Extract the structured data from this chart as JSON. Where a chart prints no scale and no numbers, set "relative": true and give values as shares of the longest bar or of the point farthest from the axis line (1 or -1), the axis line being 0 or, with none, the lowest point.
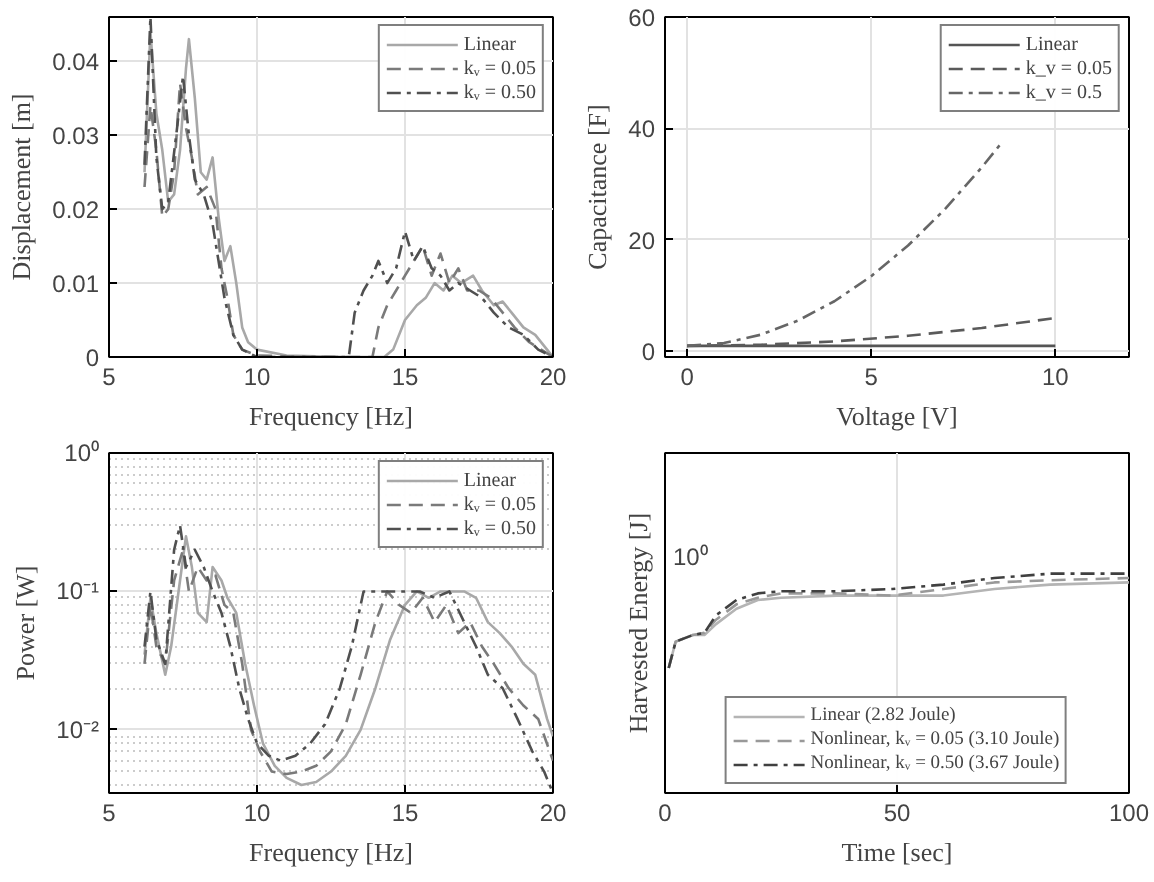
{
  "chart_data": [
    {
      "type": "line",
      "xlabel": "Frequency [Hz]",
      "ylabel": "Displacement [m]",
      "xlim": [
        5,
        20
      ],
      "ylim": [
        0,
        0.046
      ],
      "xticks": [
        5,
        10,
        15,
        20
      ],
      "yticks": [
        0,
        0.01,
        0.02,
        0.03,
        0.04
      ],
      "grid": true,
      "legend": "top right",
      "series": [
        {
          "name": "Linear",
          "color": "#a8a8a8",
          "line_style": "solid",
          "x": [
            6.2,
            6.4,
            6.6,
            6.8,
            7.0,
            7.2,
            7.4,
            7.6,
            7.7,
            7.9,
            8.1,
            8.3,
            8.5,
            8.7,
            8.9,
            9.1,
            9.3,
            9.5,
            9.7,
            10,
            11,
            13,
            14.3,
            14.6,
            15,
            15.4,
            15.7,
            16,
            16.3,
            16.6,
            16.9,
            17.3,
            17.6,
            18,
            18.3,
            18.6,
            19,
            19.4,
            19.8,
            20
          ],
          "values": [
            0.025,
            0.044,
            0.033,
            0.028,
            0.021,
            0.022,
            0.028,
            0.039,
            0.043,
            0.035,
            0.025,
            0.024,
            0.027,
            0.019,
            0.013,
            0.015,
            0.01,
            0.004,
            0.002,
            0.001,
            0.0002,
            0,
            0,
            0.001,
            0.005,
            0.007,
            0.008,
            0.01,
            0.009,
            0.011,
            0.01,
            0.011,
            0.009,
            0.007,
            0.0075,
            0.006,
            0.004,
            0.003,
            0.001,
            0
          ]
        },
        {
          "name": "kᵥ = 0.05",
          "color": "#7a7a7a",
          "line_style": "dashed",
          "x": [
            6.2,
            6.4,
            6.6,
            6.8,
            7.0,
            7.2,
            7.4,
            7.6,
            7.8,
            8.0,
            8.3,
            8.6,
            8.8,
            9.0,
            9.2,
            9.5,
            10,
            12,
            13.9,
            14.1,
            14.4,
            14.7,
            15.0,
            15.3,
            15.6,
            15.9,
            16.2,
            16.5,
            16.8,
            17.1,
            17.5,
            17.9,
            18.3,
            18.7,
            19.2,
            19.6,
            20
          ],
          "values": [
            0.023,
            0.034,
            0.028,
            0.019,
            0.02,
            0.025,
            0.037,
            0.031,
            0.027,
            0.022,
            0.023,
            0.02,
            0.012,
            0.008,
            0.003,
            0.001,
            0.0002,
            0,
            0,
            0.004,
            0.007,
            0.009,
            0.011,
            0.013,
            0.015,
            0.011,
            0.014,
            0.01,
            0.012,
            0.009,
            0.009,
            0.008,
            0.006,
            0.004,
            0.002,
            0.001,
            0
          ]
        },
        {
          "name": "kᵥ = 0.50",
          "color": "#505050",
          "line_style": "dashdot",
          "x": [
            6.2,
            6.4,
            6.6,
            6.8,
            7.0,
            7.3,
            7.5,
            7.7,
            7.9,
            8.2,
            8.5,
            8.7,
            8.9,
            9.2,
            9.5,
            10,
            12,
            13.1,
            13.3,
            13.6,
            13.9,
            14.1,
            14.4,
            14.7,
            15.0,
            15.3,
            15.6,
            15.9,
            16.2,
            16.5,
            16.8,
            17.2,
            17.6,
            18.0,
            18.5,
            19,
            19.5,
            20
          ],
          "values": [
            0.026,
            0.046,
            0.027,
            0.02,
            0.021,
            0.031,
            0.038,
            0.03,
            0.024,
            0.022,
            0.018,
            0.013,
            0.008,
            0.003,
            0.001,
            0,
            0,
            0,
            0.006,
            0.009,
            0.011,
            0.013,
            0.01,
            0.012,
            0.017,
            0.013,
            0.015,
            0.012,
            0.011,
            0.009,
            0.01,
            0.009,
            0.008,
            0.006,
            0.004,
            0.003,
            0.001,
            0
          ]
        }
      ]
    },
    {
      "type": "line",
      "xlabel": "Voltage [V]",
      "ylabel": "Capacitance [F]",
      "xlim": [
        -0.6,
        12
      ],
      "ylim": [
        -1,
        60
      ],
      "xticks": [
        0,
        5,
        10
      ],
      "yticks": [
        0,
        20,
        40,
        60
      ],
      "grid": true,
      "legend": "top right",
      "series": [
        {
          "name": "Linear",
          "color": "#555555",
          "line_style": "solid",
          "x": [
            0,
            10
          ],
          "values": [
            1,
            1
          ]
        },
        {
          "name": "k_v = 0.05",
          "color": "#5a5a5a",
          "line_style": "dashed",
          "x": [
            0,
            2,
            4,
            6,
            8,
            10
          ],
          "values": [
            1,
            1.2,
            1.8,
            2.8,
            4.2,
            6
          ]
        },
        {
          "name": "k_v = 0.5",
          "color": "#666666",
          "line_style": "dashdot",
          "x": [
            0,
            1,
            2,
            3,
            4,
            5,
            6,
            7,
            8,
            8.5
          ],
          "values": [
            1,
            1.5,
            3,
            5.5,
            9,
            13.5,
            19,
            25.5,
            33,
            37.1
          ]
        }
      ]
    },
    {
      "type": "line",
      "xlabel": "Frequency [Hz]",
      "ylabel": "Power [W]",
      "log": "y",
      "xlim": [
        5,
        20
      ],
      "ylim": [
        0.0035,
        1
      ],
      "xticks": [
        5,
        10,
        15,
        20
      ],
      "yticks": [
        {
          "value": 0.01,
          "label": "10⁻²"
        },
        {
          "value": 0.1,
          "label": "10⁻¹"
        },
        {
          "value": 1,
          "label": "10⁰"
        }
      ],
      "grid": true,
      "legend": "top right",
      "series": [
        {
          "name": "Linear",
          "color": "#a8a8a8",
          "line_style": "solid",
          "x": [
            6.2,
            6.4,
            6.6,
            6.9,
            7.1,
            7.4,
            7.6,
            7.8,
            8.0,
            8.3,
            8.5,
            8.8,
            9.0,
            9.3,
            9.6,
            9.9,
            10.2,
            10.6,
            11.0,
            11.5,
            12.0,
            12.5,
            13.0,
            13.5,
            14.0,
            14.5,
            15.0,
            15.4,
            15.8,
            16.2,
            16.6,
            17.0,
            17.4,
            17.8,
            18.2,
            18.6,
            19.0,
            19.4,
            19.8,
            20
          ],
          "values": [
            0.035,
            0.09,
            0.05,
            0.025,
            0.04,
            0.12,
            0.25,
            0.15,
            0.07,
            0.06,
            0.15,
            0.12,
            0.09,
            0.07,
            0.03,
            0.015,
            0.008,
            0.0055,
            0.0045,
            0.004,
            0.0042,
            0.005,
            0.0065,
            0.01,
            0.02,
            0.045,
            0.08,
            0.1,
            0.09,
            0.1,
            0.1,
            0.1,
            0.09,
            0.06,
            0.05,
            0.04,
            0.03,
            0.025,
            0.012,
            0.009
          ]
        },
        {
          "name": "kᵥ = 0.05",
          "color": "#7a7a7a",
          "line_style": "dashed",
          "x": [
            6.2,
            6.4,
            6.6,
            6.9,
            7.2,
            7.5,
            7.7,
            8.0,
            8.3,
            8.6,
            8.9,
            9.2,
            9.5,
            9.8,
            10.1,
            10.5,
            11.0,
            11.5,
            12.0,
            12.5,
            13.0,
            13.5,
            14.0,
            14.4,
            14.8,
            15.2,
            15.6,
            16.0,
            16.4,
            16.8,
            17.2,
            17.6,
            18.0,
            18.5,
            19.0,
            19.5,
            20
          ],
          "values": [
            0.03,
            0.08,
            0.04,
            0.03,
            0.12,
            0.2,
            0.1,
            0.15,
            0.12,
            0.13,
            0.08,
            0.07,
            0.03,
            0.01,
            0.007,
            0.005,
            0.0048,
            0.005,
            0.0055,
            0.007,
            0.011,
            0.025,
            0.06,
            0.1,
            0.08,
            0.07,
            0.09,
            0.06,
            0.08,
            0.05,
            0.06,
            0.04,
            0.03,
            0.02,
            0.015,
            0.012,
            0.006
          ]
        },
        {
          "name": "kᵥ = 0.50",
          "color": "#505050",
          "line_style": "dashdot",
          "x": [
            6.2,
            6.4,
            6.6,
            6.9,
            7.2,
            7.4,
            7.6,
            7.9,
            8.2,
            8.5,
            8.8,
            9.1,
            9.4,
            9.7,
            10.0,
            10.4,
            10.8,
            11.3,
            11.8,
            12.3,
            12.8,
            13.2,
            13.6,
            14.0,
            14.5,
            15.0,
            15.5,
            16.0,
            16.5,
            17.0,
            17.4,
            17.8,
            18.3,
            18.8,
            19.3,
            19.7,
            20
          ],
          "values": [
            0.04,
            0.1,
            0.045,
            0.03,
            0.2,
            0.3,
            0.15,
            0.2,
            0.15,
            0.1,
            0.07,
            0.04,
            0.02,
            0.012,
            0.008,
            0.0065,
            0.006,
            0.0065,
            0.008,
            0.011,
            0.02,
            0.04,
            0.1,
            0.1,
            0.1,
            0.1,
            0.1,
            0.09,
            0.1,
            0.06,
            0.04,
            0.025,
            0.02,
            0.012,
            0.007,
            0.005,
            0.0035
          ]
        }
      ]
    },
    {
      "type": "line",
      "xlabel": "Time [sec]",
      "ylabel": "Harvested Energy [J]",
      "relative": true,
      "xlim": [
        0,
        100
      ],
      "xticks": [
        0,
        50,
        100
      ],
      "grid": "x",
      "legend": "bottom",
      "annotations": [
        "10⁰"
      ],
      "series": [
        {
          "name": "Linear (2.82 Joule)",
          "color": "#b4b4b4",
          "line_style": "solid",
          "x": [
            0.8,
            2.3,
            6,
            8.5,
            11,
            15.4,
            20,
            25,
            37,
            49,
            60,
            71,
            83,
            100
          ],
          "values": [
            0.57,
            0.69,
            0.72,
            0.72,
            0.77,
            0.84,
            0.88,
            0.89,
            0.9,
            0.9,
            0.9,
            0.93,
            0.95,
            0.96
          ]
        },
        {
          "name": "Nonlinear, kᵥ = 0.05 (3.10 Joule)",
          "color": "#999999",
          "line_style": "dashed",
          "x": [
            0.8,
            2.3,
            6,
            8.5,
            11,
            15.4,
            20,
            25,
            37,
            49,
            60,
            71,
            83,
            100
          ],
          "values": [
            0.57,
            0.69,
            0.72,
            0.73,
            0.79,
            0.86,
            0.89,
            0.91,
            0.91,
            0.9,
            0.93,
            0.96,
            0.97,
            0.98
          ]
        },
        {
          "name": "Nonlinear, kᵥ = 0.50 (3.67 Joule)",
          "color": "#404040",
          "line_style": "dashdot",
          "x": [
            0.8,
            2.3,
            6,
            8.5,
            11,
            15.4,
            20,
            25,
            37,
            49,
            60,
            71,
            83,
            100
          ],
          "values": [
            0.57,
            0.69,
            0.72,
            0.73,
            0.81,
            0.88,
            0.91,
            0.92,
            0.92,
            0.93,
            0.95,
            0.98,
            1.0,
            1.0
          ]
        }
      ]
    }
  ]
}
